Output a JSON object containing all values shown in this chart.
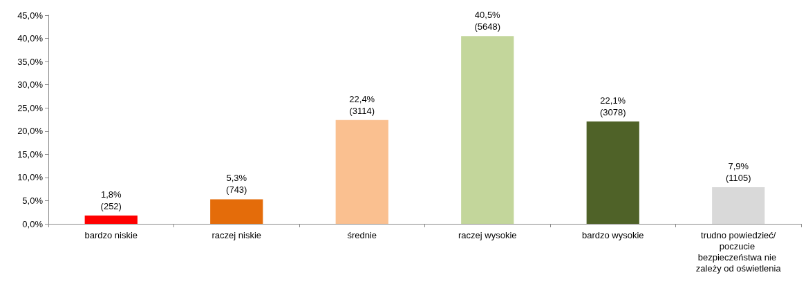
{
  "chart_data": {
    "type": "bar",
    "categories": [
      "bardzo niskie",
      "raczej niskie",
      "średnie",
      "raczej wysokie",
      "bardzo wysokie",
      "trudno powiedzieć/poczucie bezpieczeństwa nie zależy od oświetlenia"
    ],
    "values": [
      1.8,
      5.3,
      22.4,
      40.5,
      22.1,
      7.9
    ],
    "colors": [
      "#ff0000",
      "#e46c0a",
      "#fac090",
      "#c3d69b",
      "#4f6228",
      "#d9d9d9"
    ],
    "value_labels": [
      "1,8%\n(252)",
      "5,3%\n(743)",
      "22,4%\n(3114)",
      "40,5%\n(5648)",
      "22,1%\n(3078)",
      "7,9%\n(1105)"
    ],
    "ylim": [
      0,
      45
    ],
    "yticks": [
      {
        "value": 0,
        "label": "0,0%"
      },
      {
        "value": 5,
        "label": "5,0%"
      },
      {
        "value": 10,
        "label": "10,0%"
      },
      {
        "value": 15,
        "label": "15,0%"
      },
      {
        "value": 20,
        "label": "20,0%"
      },
      {
        "value": 25,
        "label": "25,0%"
      },
      {
        "value": 30,
        "label": "30,0%"
      },
      {
        "value": 35,
        "label": "35,0%"
      },
      {
        "value": 40,
        "label": "40,0%"
      },
      {
        "value": 45,
        "label": "45,0%"
      }
    ],
    "grid": false
  }
}
